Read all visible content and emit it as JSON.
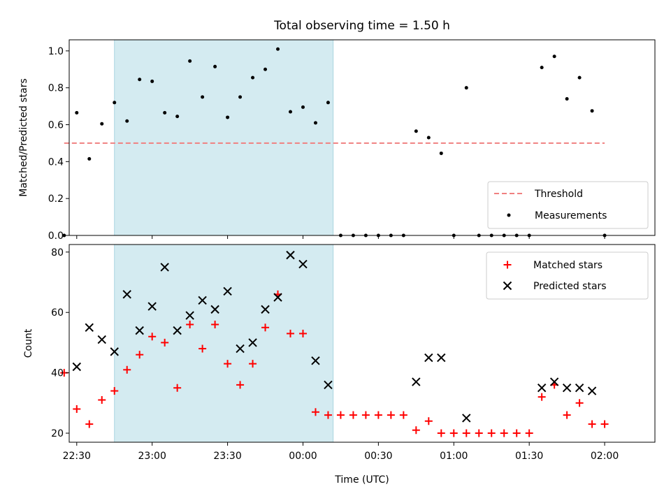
{
  "chart_data": [
    {
      "type": "scatter",
      "title": "Total observing time = 1.50 h",
      "xlabel": "",
      "ylabel": "Matched/Predicted stars",
      "ylim": [
        0,
        1.06
      ],
      "yticks": [
        "0.0",
        "0.2",
        "0.4",
        "0.6",
        "0.8",
        "1.0"
      ],
      "shaded_region_x": [
        "22:45",
        "00:12"
      ],
      "shaded_color": "#d4ebf1",
      "legend_position": "lower-right",
      "threshold": {
        "name": "Threshold",
        "y": 0.5,
        "x": [
          "22:25",
          "02:00"
        ],
        "color": "#f08080"
      },
      "series": [
        {
          "name": "Measurements",
          "color": "#000000",
          "x": [
            "22:25",
            "22:30",
            "22:35",
            "22:40",
            "22:45",
            "22:50",
            "22:55",
            "23:00",
            "23:05",
            "23:10",
            "23:15",
            "23:20",
            "23:25",
            "23:30",
            "23:35",
            "23:40",
            "23:45",
            "23:50",
            "23:55",
            "00:00",
            "00:05",
            "00:10",
            "00:15",
            "00:20",
            "00:25",
            "00:30",
            "00:35",
            "00:40",
            "00:45",
            "00:50",
            "00:55",
            "01:00",
            "01:05",
            "01:10",
            "01:15",
            "01:20",
            "01:25",
            "01:30",
            "01:35",
            "01:40",
            "01:45",
            "01:50",
            "01:55",
            "02:00"
          ],
          "y": [
            0,
            0.665,
            0.415,
            0.605,
            0.72,
            0.62,
            0.845,
            0.835,
            0.665,
            0.645,
            0.945,
            0.75,
            0.915,
            0.64,
            0.75,
            0.855,
            0.9,
            1.01,
            0.67,
            0.695,
            0.61,
            0.72,
            0,
            0,
            0,
            0,
            0,
            0,
            0.565,
            0.53,
            0.445,
            0,
            0.8,
            0,
            0,
            0,
            0,
            0,
            0.91,
            0.97,
            0.74,
            0.855,
            0.675,
            0
          ]
        }
      ]
    },
    {
      "type": "scatter",
      "title": "",
      "xlabel": "Time (UTC)",
      "ylabel": "Count",
      "ylim": [
        17,
        82.5
      ],
      "yticks": [
        "20",
        "40",
        "60",
        "80"
      ],
      "xticks": [
        "22:30",
        "23:00",
        "23:30",
        "00:00",
        "00:30",
        "01:00",
        "01:30",
        "02:00"
      ],
      "shaded_region_x": [
        "22:45",
        "00:12"
      ],
      "shaded_color": "#d4ebf1",
      "legend_position": "top-right",
      "series": [
        {
          "name": "Matched stars",
          "marker": "+",
          "color": "#ff0000",
          "x": [
            "22:25",
            "22:30",
            "22:35",
            "22:40",
            "22:45",
            "22:50",
            "22:55",
            "23:00",
            "23:05",
            "23:10",
            "23:15",
            "23:20",
            "23:25",
            "23:30",
            "23:35",
            "23:40",
            "23:45",
            "23:50",
            "23:55",
            "00:00",
            "00:05",
            "00:10",
            "00:15",
            "00:20",
            "00:25",
            "00:30",
            "00:35",
            "00:40",
            "00:45",
            "00:50",
            "00:55",
            "01:00",
            "01:05",
            "01:10",
            "01:15",
            "01:20",
            "01:25",
            "01:30",
            "01:35",
            "01:40",
            "01:45",
            "01:50",
            "01:55",
            "02:00"
          ],
          "y": [
            40,
            28,
            23,
            31,
            34,
            41,
            46,
            52,
            50,
            35,
            56,
            48,
            56,
            43,
            36,
            43,
            55,
            66,
            53,
            53,
            27,
            26,
            26,
            26,
            26,
            26,
            26,
            26,
            21,
            24,
            20,
            20,
            20,
            20,
            20,
            20,
            20,
            20,
            32,
            36,
            26,
            30,
            23,
            23
          ]
        },
        {
          "name": "Predicted stars",
          "marker": "x",
          "color": "#000000",
          "x": [
            "22:30",
            "22:35",
            "22:40",
            "22:45",
            "22:50",
            "22:55",
            "23:00",
            "23:05",
            "23:10",
            "23:15",
            "23:20",
            "23:25",
            "23:30",
            "23:35",
            "23:40",
            "23:45",
            "23:50",
            "23:55",
            "00:00",
            "00:05",
            "00:10",
            "00:45",
            "00:50",
            "00:55",
            "01:05",
            "01:35",
            "01:40",
            "01:45",
            "01:50",
            "01:55"
          ],
          "y": [
            42,
            55,
            51,
            47,
            66,
            54,
            62,
            75,
            54,
            59,
            64,
            61,
            67,
            48,
            50,
            61,
            65,
            79,
            76,
            44,
            36,
            37,
            45,
            45,
            25,
            35,
            37,
            35,
            35,
            34
          ]
        }
      ]
    }
  ]
}
